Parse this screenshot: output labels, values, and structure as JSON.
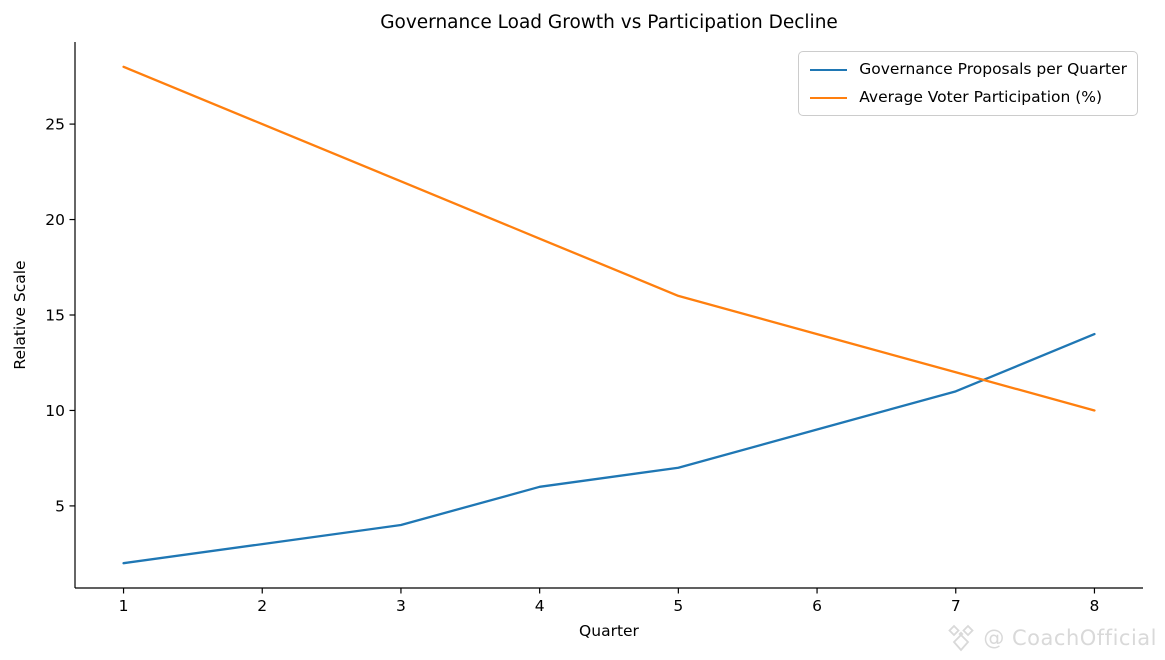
{
  "title": "Governance Load Growth vs Participation Decline",
  "watermark": {
    "text": "@ CoachOfficial",
    "icon": "diamond-logo-icon",
    "color": "#d9d9d9"
  },
  "colors": {
    "series_blue": "#1f77b4",
    "series_orange": "#ff7f0e",
    "axis": "#000000",
    "legend_border": "#cccccc",
    "background": "#ffffff"
  },
  "chart_data": {
    "type": "line",
    "title": "Governance Load Growth vs Participation Decline",
    "xlabel": "Quarter",
    "ylabel": "Relative Scale",
    "x": [
      1,
      2,
      3,
      4,
      5,
      6,
      7,
      8
    ],
    "series": [
      {
        "name": "Governance Proposals per Quarter",
        "color": "#1f77b4",
        "values": [
          2,
          3,
          4,
          6,
          7,
          9,
          11,
          14
        ]
      },
      {
        "name": "Average Voter Participation (%)",
        "color": "#ff7f0e",
        "values": [
          28,
          25,
          22,
          19,
          16,
          14,
          12,
          10
        ]
      }
    ],
    "xticks": [
      1,
      2,
      3,
      4,
      5,
      6,
      7,
      8
    ],
    "xtick_labels": [
      "1",
      "2",
      "3",
      "4",
      "5",
      "6",
      "7",
      "8"
    ],
    "yticks": [
      5,
      10,
      15,
      20,
      25
    ],
    "ytick_labels": [
      "5",
      "10",
      "15",
      "20",
      "25"
    ],
    "xlim": [
      0.65,
      8.35
    ],
    "ylim": [
      0.7,
      29.3
    ],
    "grid": false,
    "legend_position": "upper right",
    "spines": [
      "left",
      "bottom"
    ]
  }
}
